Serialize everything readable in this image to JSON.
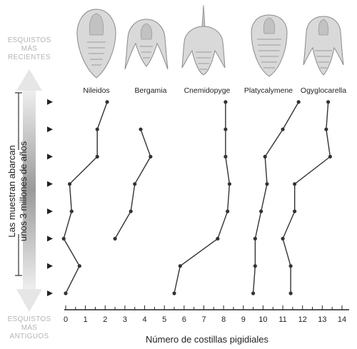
{
  "labels": {
    "top": [
      "ESQUISTOS",
      "MÁS",
      "RECIENTES"
    ],
    "bottom": [
      "ESQUISTOS",
      "MÁS",
      "ANTIGUOS"
    ],
    "side": [
      "Las muestran abarcan",
      "unos 3 millones de años"
    ]
  },
  "colors": {
    "line": "#333333",
    "arrow_light": "#eeeeee",
    "arrow_dark": "#9a9a9a",
    "muted_text": "#b4b4b4",
    "fossil_fill": "#d6d6d6"
  },
  "icons": [
    "trilobite-nileidos-icon",
    "trilobite-bergamia-icon",
    "trilobite-cnemidopyge-icon",
    "trilobite-platycalymene-icon",
    "trilobite-ogyglocarella-icon",
    "triangle-marker-icon"
  ],
  "chart_data": {
    "type": "line",
    "xlabel": "Número de costillas pigidiales",
    "ylabel": "",
    "xlim": [
      0,
      14
    ],
    "x_ticks": [
      "0",
      "1",
      "2",
      "3",
      "4",
      "5",
      "6",
      "7",
      "8",
      "9",
      "10",
      "11",
      "12",
      "13",
      "14"
    ],
    "sample_levels": 8,
    "grid": false,
    "series": [
      {
        "name": "Nileidos",
        "values": [
          0,
          0.7,
          -0.1,
          0.3,
          0.2,
          1.6,
          1.6,
          2.1
        ]
      },
      {
        "name": "Bergamia",
        "values": [
          null,
          null,
          2.5,
          3.3,
          3.5,
          4.3,
          3.8,
          null
        ]
      },
      {
        "name": "Cnemidopyge",
        "values": [
          5.5,
          5.8,
          7.7,
          8.2,
          8.3,
          8.1,
          8.1,
          8.1
        ]
      },
      {
        "name": "Platycalymene",
        "values": [
          9.5,
          9.6,
          9.6,
          9.9,
          10.2,
          10.1,
          11.0,
          11.8
        ]
      },
      {
        "name": "Ogyglocarella",
        "values": [
          11.4,
          11.4,
          11.0,
          11.6,
          11.6,
          13.4,
          13.2,
          13.3
        ]
      }
    ]
  }
}
